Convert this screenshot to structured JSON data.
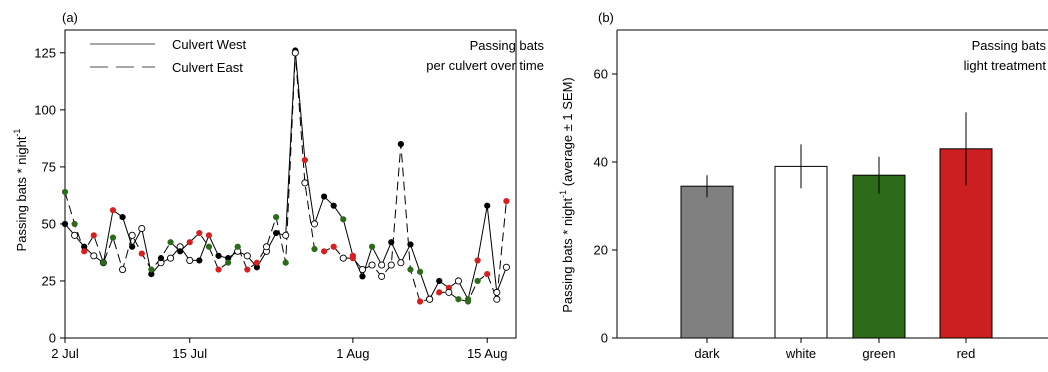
{
  "chart_data": [
    {
      "type": "line",
      "panel_label": "(a)",
      "annotation": [
        "Passing bats",
        "per culvert over time"
      ],
      "ylabel": "Passing bats * night",
      "ylabel_sup": "-1",
      "ylim": [
        0,
        135
      ],
      "yticks": [
        0,
        25,
        50,
        75,
        100,
        125
      ],
      "xlim": [
        1,
        48
      ],
      "xticks": [
        {
          "label": "2 Jul",
          "day": 1
        },
        {
          "label": "15 Jul",
          "day": 14
        },
        {
          "label": "1 Aug",
          "day": 31
        },
        {
          "label": "15 Aug",
          "day": 45
        }
      ],
      "legend": {
        "position": "top-left"
      },
      "treatment_colors": {
        "dark": "#000000",
        "white": "#ffffff",
        "green": "#2d6a1a",
        "red": "#d62020"
      },
      "series": [
        {
          "name": "Culvert West",
          "dash": "solid",
          "points": [
            {
              "day": 1,
              "value": 50,
              "treatment": "dark"
            },
            {
              "day": 2,
              "value": 45,
              "treatment": "white"
            },
            {
              "day": 3,
              "value": 40,
              "treatment": "dark"
            },
            {
              "day": 4,
              "value": 36,
              "treatment": "white"
            },
            {
              "day": 5,
              "value": 33,
              "treatment": "white"
            },
            {
              "day": 6,
              "value": 56,
              "treatment": "red"
            },
            {
              "day": 7,
              "value": 53,
              "treatment": "dark"
            },
            {
              "day": 8,
              "value": 40,
              "treatment": "dark"
            },
            {
              "day": 9,
              "value": 48,
              "treatment": "white"
            },
            {
              "day": 10,
              "value": 28,
              "treatment": "dark"
            },
            {
              "day": 11,
              "value": 33,
              "treatment": "white"
            },
            {
              "day": 12,
              "value": 35,
              "treatment": "white"
            },
            {
              "day": 13,
              "value": 40,
              "treatment": "white"
            },
            {
              "day": 14,
              "value": 34,
              "treatment": "white"
            },
            {
              "day": 15,
              "value": 34,
              "treatment": "dark"
            },
            {
              "day": 16,
              "value": 45,
              "treatment": "red"
            },
            {
              "day": 17,
              "value": 36,
              "treatment": "dark"
            },
            {
              "day": 18,
              "value": 35,
              "treatment": "dark"
            },
            {
              "day": 19,
              "value": 38,
              "treatment": "white"
            },
            {
              "day": 20,
              "value": 36,
              "treatment": "white"
            },
            {
              "day": 21,
              "value": 31,
              "treatment": "dark"
            },
            {
              "day": 22,
              "value": 38,
              "treatment": "white"
            },
            {
              "day": 23,
              "value": 46,
              "treatment": "dark"
            },
            {
              "day": 24,
              "value": 45,
              "treatment": "white"
            },
            {
              "day": 25,
              "value": 126,
              "treatment": "dark"
            },
            {
              "day": 26,
              "value": 78,
              "treatment": "red"
            },
            {
              "day": 27,
              "value": 50,
              "treatment": "white"
            },
            {
              "day": 28,
              "value": 62,
              "treatment": "dark"
            },
            {
              "day": 29,
              "value": 58,
              "treatment": "dark"
            },
            {
              "day": 30,
              "value": 52,
              "treatment": "green"
            },
            {
              "day": 31,
              "value": 36,
              "treatment": "red"
            },
            {
              "day": 32,
              "value": 27,
              "treatment": "dark"
            },
            {
              "day": 33,
              "value": 40,
              "treatment": "green"
            },
            {
              "day": 34,
              "value": 32,
              "treatment": "white"
            },
            {
              "day": 35,
              "value": 42,
              "treatment": "dark"
            },
            {
              "day": 36,
              "value": 33,
              "treatment": "white"
            },
            {
              "day": 37,
              "value": 41,
              "treatment": "dark"
            },
            {
              "day": 38,
              "value": 29,
              "treatment": "green"
            },
            {
              "day": 39,
              "value": 17,
              "treatment": "white"
            },
            {
              "day": 40,
              "value": 25,
              "treatment": "dark"
            },
            {
              "day": 41,
              "value": 22,
              "treatment": "red"
            },
            {
              "day": 42,
              "value": 25,
              "treatment": "white"
            },
            {
              "day": 43,
              "value": 17,
              "treatment": "green"
            },
            {
              "day": 44,
              "value": 34,
              "treatment": "red"
            },
            {
              "day": 45,
              "value": 58,
              "treatment": "dark"
            },
            {
              "day": 46,
              "value": 20,
              "treatment": "white"
            },
            {
              "day": 47,
              "value": 31,
              "treatment": "white"
            }
          ]
        },
        {
          "name": "Culvert East",
          "dash": "dashed",
          "points": [
            {
              "day": 1,
              "value": 64,
              "treatment": "green"
            },
            {
              "day": 2,
              "value": 50,
              "treatment": "green"
            },
            {
              "day": 3,
              "value": 38,
              "treatment": "red"
            },
            {
              "day": 4,
              "value": 45,
              "treatment": "red"
            },
            {
              "day": 5,
              "value": 33,
              "treatment": "green"
            },
            {
              "day": 6,
              "value": 44,
              "treatment": "green"
            },
            {
              "day": 7,
              "value": 30,
              "treatment": "white"
            },
            {
              "day": 8,
              "value": 45,
              "treatment": "white"
            },
            {
              "day": 9,
              "value": 37,
              "treatment": "red"
            },
            {
              "day": 10,
              "value": 30,
              "treatment": "green"
            },
            {
              "day": 11,
              "value": 35,
              "treatment": "dark"
            },
            {
              "day": 12,
              "value": 42,
              "treatment": "green"
            },
            {
              "day": 13,
              "value": 38,
              "treatment": "dark"
            },
            {
              "day": 14,
              "value": 42,
              "treatment": "red"
            },
            {
              "day": 15,
              "value": 46,
              "treatment": "red"
            },
            {
              "day": 16,
              "value": 40,
              "treatment": "green"
            },
            {
              "day": 17,
              "value": 30,
              "treatment": "red"
            },
            {
              "day": 18,
              "value": 33,
              "treatment": "green"
            },
            {
              "day": 19,
              "value": 40,
              "treatment": "green"
            },
            {
              "day": 20,
              "value": 30,
              "treatment": "red"
            },
            {
              "day": 21,
              "value": 33,
              "treatment": "red"
            },
            {
              "day": 22,
              "value": 40,
              "treatment": "white"
            },
            {
              "day": 23,
              "value": 53,
              "treatment": "green"
            },
            {
              "day": 24,
              "value": 33,
              "treatment": "green"
            },
            {
              "day": 25,
              "value": 125,
              "treatment": "white"
            },
            {
              "day": 26,
              "value": 68,
              "treatment": "white"
            },
            {
              "day": 27,
              "value": 39,
              "treatment": "green"
            },
            {
              "day": 28,
              "value": 38,
              "treatment": "red"
            },
            {
              "day": 29,
              "value": 40,
              "treatment": "red"
            },
            {
              "day": 30,
              "value": 35,
              "treatment": "white"
            },
            {
              "day": 31,
              "value": 35,
              "treatment": "red"
            },
            {
              "day": 32,
              "value": 30,
              "treatment": "white"
            },
            {
              "day": 33,
              "value": 32,
              "treatment": "white"
            },
            {
              "day": 34,
              "value": 27,
              "treatment": "white"
            },
            {
              "day": 35,
              "value": 32,
              "treatment": "white"
            },
            {
              "day": 36,
              "value": 85,
              "treatment": "dark"
            },
            {
              "day": 37,
              "value": 30,
              "treatment": "green"
            },
            {
              "day": 38,
              "value": 16,
              "treatment": "red"
            },
            {
              "day": 39,
              "value": 17,
              "treatment": "white"
            },
            {
              "day": 40,
              "value": 20,
              "treatment": "red"
            },
            {
              "day": 41,
              "value": 20,
              "treatment": "white"
            },
            {
              "day": 42,
              "value": 17,
              "treatment": "green"
            },
            {
              "day": 43,
              "value": 16,
              "treatment": "green"
            },
            {
              "day": 44,
              "value": 25,
              "treatment": "green"
            },
            {
              "day": 45,
              "value": 28,
              "treatment": "red"
            },
            {
              "day": 46,
              "value": 17,
              "treatment": "white"
            },
            {
              "day": 47,
              "value": 60,
              "treatment": "red"
            }
          ]
        }
      ]
    },
    {
      "type": "bar",
      "panel_label": "(b)",
      "annotation": [
        "Passing bats",
        "light treatment"
      ],
      "ylabel": "Passing bats * night",
      "ylabel_sup": "-1",
      "ylabel_suffix": " (average ± 1 SEM)",
      "ylim": [
        0,
        70
      ],
      "yticks": [
        0,
        20,
        40,
        60
      ],
      "categories": [
        "dark",
        "white",
        "green",
        "red"
      ],
      "values": [
        34.5,
        39,
        37,
        43
      ],
      "errors": [
        2.5,
        5,
        4.2,
        8.3
      ],
      "colors": [
        "#808080",
        "#ffffff",
        "#2d6a1a",
        "#cc1f1f"
      ]
    }
  ]
}
